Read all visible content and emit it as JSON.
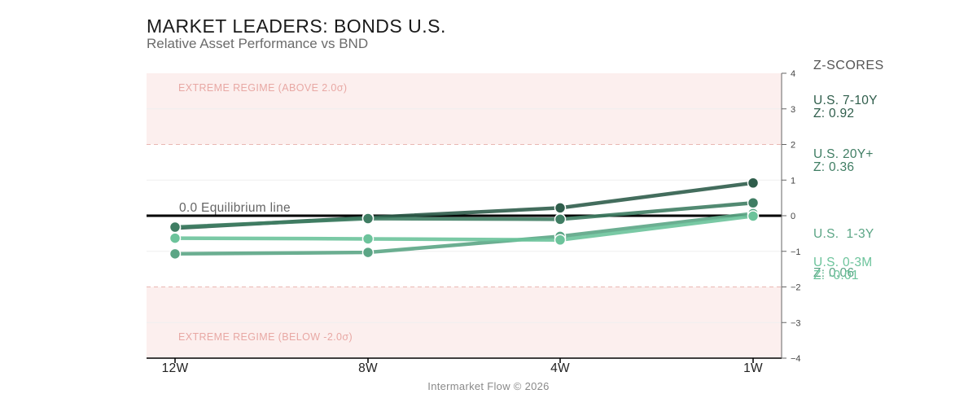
{
  "header": {
    "title": "MARKET LEADERS: BONDS U.S.",
    "subtitle": "Relative Asset Performance vs BND"
  },
  "zscores_label": "Z-SCORES",
  "footer": "Intermarket Flow © 2026",
  "colors": {
    "regime_fill": "#fcefee",
    "regime_text": "#e8a8a4",
    "s1": "#2f5d4b",
    "s2": "#3f7d63",
    "s3": "#5ba585",
    "s4": "#6cc39b"
  },
  "chart_data": {
    "type": "line",
    "title": "MARKET LEADERS: BONDS U.S.",
    "subtitle": "Relative Asset Performance vs BND",
    "categories": [
      "12W",
      "8W",
      "4W",
      "1W"
    ],
    "ylim": [
      -4,
      4
    ],
    "yticks": [
      4,
      3,
      2,
      1,
      0,
      -1,
      -2,
      -3,
      -4
    ],
    "ytick_labels": [
      "4",
      "3",
      "2",
      "1",
      "0",
      "−1",
      "−2",
      "−3",
      "−4"
    ],
    "equilibrium_label": "0.0 Equilibrium line",
    "regimes": {
      "upper_label": "EXTREME REGIME (ABOVE 2.0σ)",
      "lower_label": "EXTREME REGIME (BELOW -2.0σ)",
      "upper_threshold": 2,
      "lower_threshold": -2
    },
    "series": [
      {
        "name": "U.S. 7-10Y",
        "z_label": "Z: 0.92",
        "color": "#2f5d4b",
        "values": [
          -0.35,
          -0.05,
          0.22,
          0.92
        ]
      },
      {
        "name": "U.S. 20Y+",
        "z_label": "Z: 0.36",
        "color": "#3f7d63",
        "values": [
          -0.32,
          -0.08,
          -0.1,
          0.36
        ]
      },
      {
        "name": "U.S.  1-3Y",
        "z_label": "Z: 0.06",
        "color": "#5ba585",
        "values": [
          -1.07,
          -1.03,
          -0.58,
          0.06
        ]
      },
      {
        "name": "U.S. 0-3M",
        "z_label": "Z: -0.01",
        "color": "#6cc39b",
        "values": [
          -0.63,
          -0.65,
          -0.68,
          -0.01
        ]
      }
    ]
  }
}
